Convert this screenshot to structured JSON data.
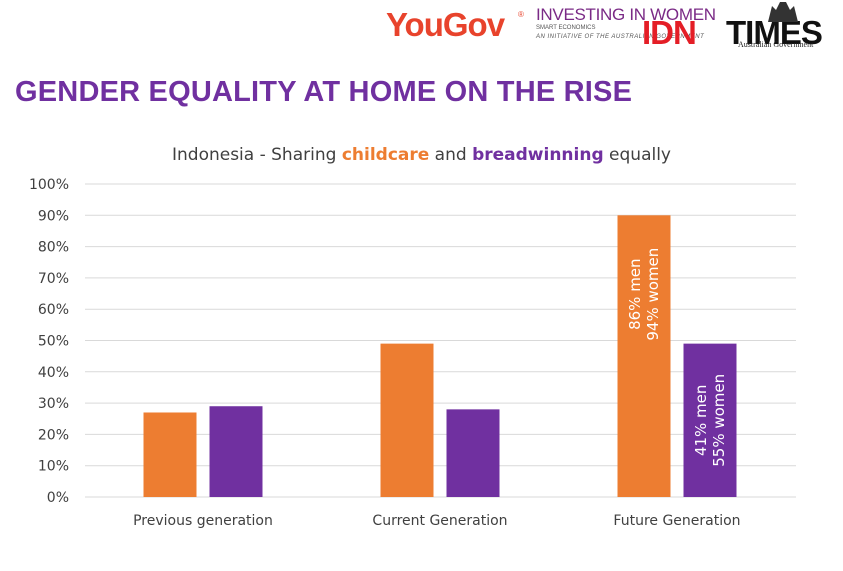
{
  "header": {
    "yougov": "YouGov",
    "yougov_reg": "®",
    "iiw_title": "INVESTING IN WOMEN",
    "iiw_sub": "SMART ECONOMICS",
    "iiw_initiative": "AN INITIATIVE OF THE AUSTRALIAN GOVERNMENT",
    "idn": "IDN",
    "times": "TIMES",
    "gov": "Australian Government"
  },
  "heading": "GENDER EQUALITY AT HOME ON THE RISE",
  "chart_title": {
    "prefix": "Indonesia - Sharing ",
    "word1": "childcare",
    "middle": " and ",
    "word2": "breadwinning",
    "suffix": " equally"
  },
  "colors": {
    "childcare": "#ed7d31",
    "breadwinning": "#7030a0",
    "heading": "#7030a0",
    "grid": "#d9d9d9"
  },
  "chart_data": {
    "type": "bar",
    "categories": [
      "Previous generation",
      "Current Generation",
      "Future Generation"
    ],
    "series": [
      {
        "values": [
          27,
          49,
          90
        ],
        "color": "#ed7d31"
      },
      {
        "values": [
          29,
          28,
          49
        ],
        "color": "#7030a0"
      }
    ],
    "ylim": [
      0,
      100
    ],
    "yticks": [
      "0%",
      "10%",
      "20%",
      "30%",
      "40%",
      "50%",
      "60%",
      "70%",
      "80%",
      "90%",
      "100%"
    ],
    "grid": true,
    "annotations": [
      {
        "category": 2,
        "series": 0,
        "lines": [
          "86% men",
          "94% women"
        ]
      },
      {
        "category": 2,
        "series": 1,
        "lines": [
          "41% men",
          "55% women"
        ]
      }
    ]
  }
}
